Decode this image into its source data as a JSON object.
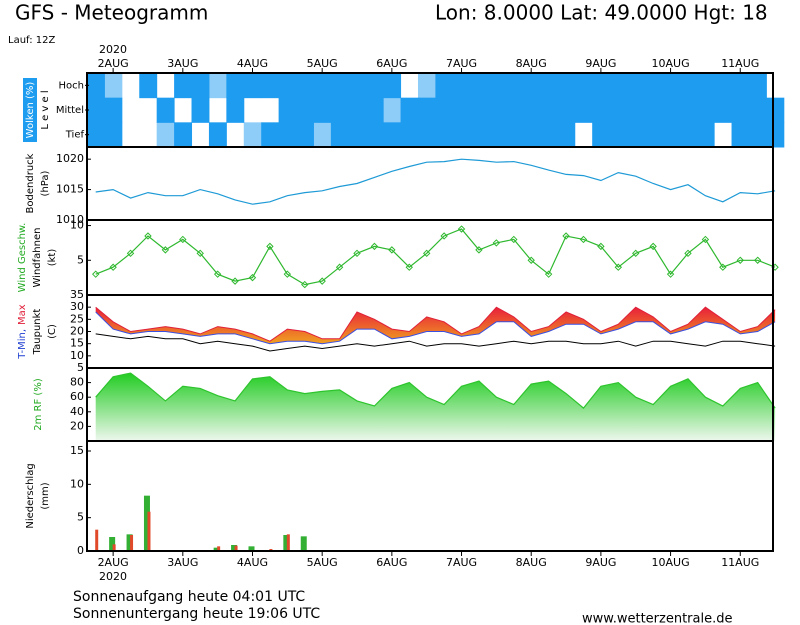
{
  "header": {
    "title": "GFS - Meteogramm",
    "location": "Lon: 8.0000 Lat: 49.0000 Hgt: 18",
    "run": "Lauf: 12Z"
  },
  "footer": {
    "sunrise": "Sonnenaufgang heute 04:01 UTC",
    "sunset": "Sonnenuntergang heute 19:06 UTC",
    "site": "www.wetterzentrale.de"
  },
  "chart_data": {
    "type": "meteogram",
    "year": "2020",
    "xlim": [
      -0.375,
      9.47
    ],
    "xticks": [
      {
        "value": 0,
        "label": "2AUG"
      },
      {
        "value": 1,
        "label": "3AUG"
      },
      {
        "value": 2,
        "label": "4AUG"
      },
      {
        "value": 3,
        "label": "5AUG"
      },
      {
        "value": 4,
        "label": "6AUG"
      },
      {
        "value": 5,
        "label": "7AUG"
      },
      {
        "value": 6,
        "label": "8AUG"
      },
      {
        "value": 7,
        "label": "9AUG"
      },
      {
        "value": 8,
        "label": "10AUG"
      },
      {
        "value": 9,
        "label": "11AUG"
      }
    ],
    "x": [
      -0.25,
      0,
      0.25,
      0.5,
      0.75,
      1,
      1.25,
      1.5,
      1.75,
      2,
      2.25,
      2.5,
      2.75,
      3,
      3.25,
      3.5,
      3.75,
      4,
      4.25,
      4.5,
      4.75,
      5,
      5.25,
      5.5,
      5.75,
      6,
      6.25,
      6.5,
      6.75,
      7,
      7.25,
      7.5,
      7.75,
      8,
      8.25,
      8.5,
      8.75,
      9,
      9.25,
      9.5
    ],
    "panels": [
      {
        "type": "cloud",
        "color": "#1e9cf0",
        "labels": [
          [
            {
              "text": "Wolken (%)",
              "color": "#ffffff",
              "background": "#1e9cf0"
            }
          ],
          [
            {
              "text": "L e v e l",
              "color": "#000000"
            }
          ]
        ],
        "levels": [
          {
            "name": "Hoch",
            "values": [
              100,
              50,
              0,
              100,
              0,
              100,
              100,
              50,
              100,
              100,
              100,
              100,
              100,
              100,
              100,
              100,
              100,
              100,
              0,
              50,
              100,
              100,
              100,
              100,
              100,
              100,
              100,
              100,
              100,
              100,
              100,
              100,
              100,
              100,
              100,
              100,
              100,
              100,
              100,
              0
            ]
          },
          {
            "name": "Mittel",
            "values": [
              100,
              100,
              0,
              0,
              100,
              0,
              100,
              0,
              100,
              0,
              0,
              100,
              100,
              100,
              100,
              100,
              100,
              50,
              100,
              100,
              100,
              100,
              100,
              100,
              100,
              100,
              100,
              100,
              100,
              100,
              100,
              100,
              100,
              100,
              100,
              100,
              100,
              100,
              100,
              100
            ]
          },
          {
            "name": "Tief",
            "values": [
              100,
              100,
              0,
              0,
              50,
              100,
              0,
              100,
              0,
              50,
              100,
              100,
              100,
              50,
              100,
              100,
              100,
              100,
              100,
              100,
              100,
              100,
              100,
              100,
              100,
              100,
              100,
              100,
              0,
              100,
              100,
              100,
              100,
              100,
              100,
              100,
              0,
              100,
              100,
              100
            ]
          }
        ]
      },
      {
        "type": "line",
        "ylim": [
          1010,
          1022
        ],
        "yticks": [
          1010,
          1015,
          1020
        ],
        "labels": [
          [
            {
              "text": "Bodendruck",
              "color": "#000000"
            }
          ],
          [
            {
              "text": "(hPa)",
              "color": "#000000"
            }
          ]
        ],
        "series": [
          {
            "color": "#1e9ad6",
            "values": [
              1014.6,
              1015,
              1013.6,
              1014.5,
              1014,
              1014,
              1015,
              1014.3,
              1013.3,
              1012.6,
              1013,
              1014,
              1014.5,
              1014.8,
              1015.5,
              1016,
              1017,
              1018,
              1018.8,
              1019.5,
              1019.6,
              1020,
              1019.8,
              1019.5,
              1019.6,
              1019,
              1018.2,
              1017.5,
              1017.3,
              1016.5,
              1017.8,
              1017.2,
              1016,
              1015,
              1015.8,
              1014,
              1013,
              1014.5,
              1014.3,
              1014.8
            ]
          }
        ]
      },
      {
        "type": "line",
        "markers": true,
        "ylim": [
          0,
          10.8
        ],
        "yticks": [
          5,
          10
        ],
        "labels": [
          [
            {
              "text": "Wind Geschw.",
              "color": "#22aa22"
            }
          ],
          [
            {
              "text": "Windfahnen",
              "color": "#000000"
            }
          ],
          [
            {
              "text": "(kt)",
              "color": "#000000"
            }
          ]
        ],
        "series": [
          {
            "color": "#2eb82e",
            "values": [
              3,
              4,
              6,
              8.5,
              6.5,
              8,
              6,
              3,
              2,
              2.5,
              7,
              3,
              1.5,
              2,
              4,
              6,
              7,
              6.5,
              4,
              6,
              8.5,
              9.5,
              6.5,
              7.5,
              8,
              5,
              3,
              8.5,
              8,
              7,
              4,
              6,
              7,
              3,
              6,
              8,
              4,
              5,
              5,
              4
            ]
          }
        ]
      },
      {
        "type": "temperature",
        "ylim": [
          5,
          35
        ],
        "yticks": [
          5,
          10,
          15,
          20,
          25,
          30,
          35
        ],
        "labels": [
          [
            {
              "text": "T-Min,",
              "color": "#1f3fd0"
            },
            {
              "text": "Max",
              "color": "#e0203a"
            }
          ],
          [
            {
              "text": "Taupunkt",
              "color": "#000000"
            }
          ],
          [
            {
              "text": "(C)",
              "color": "#000000"
            }
          ]
        ],
        "max": {
          "color": "#e0203a",
          "values": [
            30,
            24,
            20,
            21,
            22,
            21,
            19,
            22,
            21,
            19,
            16,
            21,
            20,
            17,
            17,
            28,
            25,
            21,
            20,
            26,
            24,
            19,
            22,
            30,
            26,
            20,
            22,
            28,
            25,
            20,
            23,
            30,
            26,
            20,
            23,
            30,
            25,
            20,
            22,
            29
          ]
        },
        "min": {
          "color": "#3b4fe0",
          "values": [
            28,
            21,
            19,
            20,
            20,
            19,
            18,
            19,
            19,
            17,
            15,
            16,
            16,
            15,
            16,
            21,
            21,
            17,
            18,
            20,
            20,
            18,
            19,
            24,
            24,
            18,
            20,
            23,
            23,
            19,
            21,
            24,
            24,
            19,
            21,
            24,
            23,
            19,
            20,
            24
          ]
        },
        "dewpoint": {
          "color": "#000000",
          "values": [
            19,
            18,
            17,
            18,
            17,
            17,
            15,
            16,
            15,
            14,
            12,
            13,
            14,
            13,
            14,
            15,
            14,
            15,
            16,
            14,
            15,
            15,
            14,
            15,
            16,
            15,
            16,
            16,
            15,
            15,
            16,
            14,
            16,
            16,
            15,
            14,
            16,
            16,
            15,
            14
          ]
        }
      },
      {
        "type": "area",
        "ylim": [
          0,
          100
        ],
        "yticks": [
          20,
          40,
          60,
          80
        ],
        "labels": [
          [
            {
              "text": "2m RF (%)",
              "color": "#22aa22"
            }
          ]
        ],
        "series": [
          {
            "color": "#2ec42e",
            "values": [
              60,
              88,
              93,
              75,
              55,
              75,
              72,
              62,
              55,
              85,
              88,
              70,
              65,
              68,
              70,
              55,
              48,
              72,
              80,
              60,
              50,
              75,
              82,
              60,
              50,
              78,
              82,
              65,
              45,
              75,
              80,
              60,
              50,
              75,
              85,
              60,
              48,
              72,
              80,
              45
            ]
          }
        ]
      },
      {
        "type": "bars",
        "ylim": [
          0,
          16.5
        ],
        "yticks": [
          0,
          5,
          10,
          15
        ],
        "labels": [
          [
            {
              "text": "Niederschlag",
              "color": "#000000"
            }
          ],
          [
            {
              "text": "(mm)",
              "color": "#000000"
            }
          ]
        ],
        "series": [
          {
            "color": "#33b033",
            "values": [
              0,
              2.1,
              2.5,
              8.3,
              0,
              0,
              0,
              0.5,
              0.9,
              0.7,
              0,
              2.4,
              2.2,
              0,
              0,
              0,
              0,
              0,
              0,
              0,
              0,
              0,
              0,
              0,
              0,
              0,
              0,
              0,
              0,
              0,
              0,
              0,
              0,
              0,
              0,
              0,
              0,
              0,
              0,
              0
            ]
          },
          {
            "color": "#e04a2a",
            "values": [
              3.2,
              1,
              2.4,
              5.9,
              0,
              0,
              0,
              0.7,
              0.8,
              0,
              0.3,
              2.5,
              0,
              0,
              0,
              0,
              0,
              0,
              0,
              0,
              0,
              0,
              0,
              0,
              0,
              0,
              0,
              0,
              0,
              0,
              0,
              0,
              0,
              0,
              0,
              0,
              0,
              0,
              0,
              0
            ]
          }
        ]
      }
    ]
  }
}
